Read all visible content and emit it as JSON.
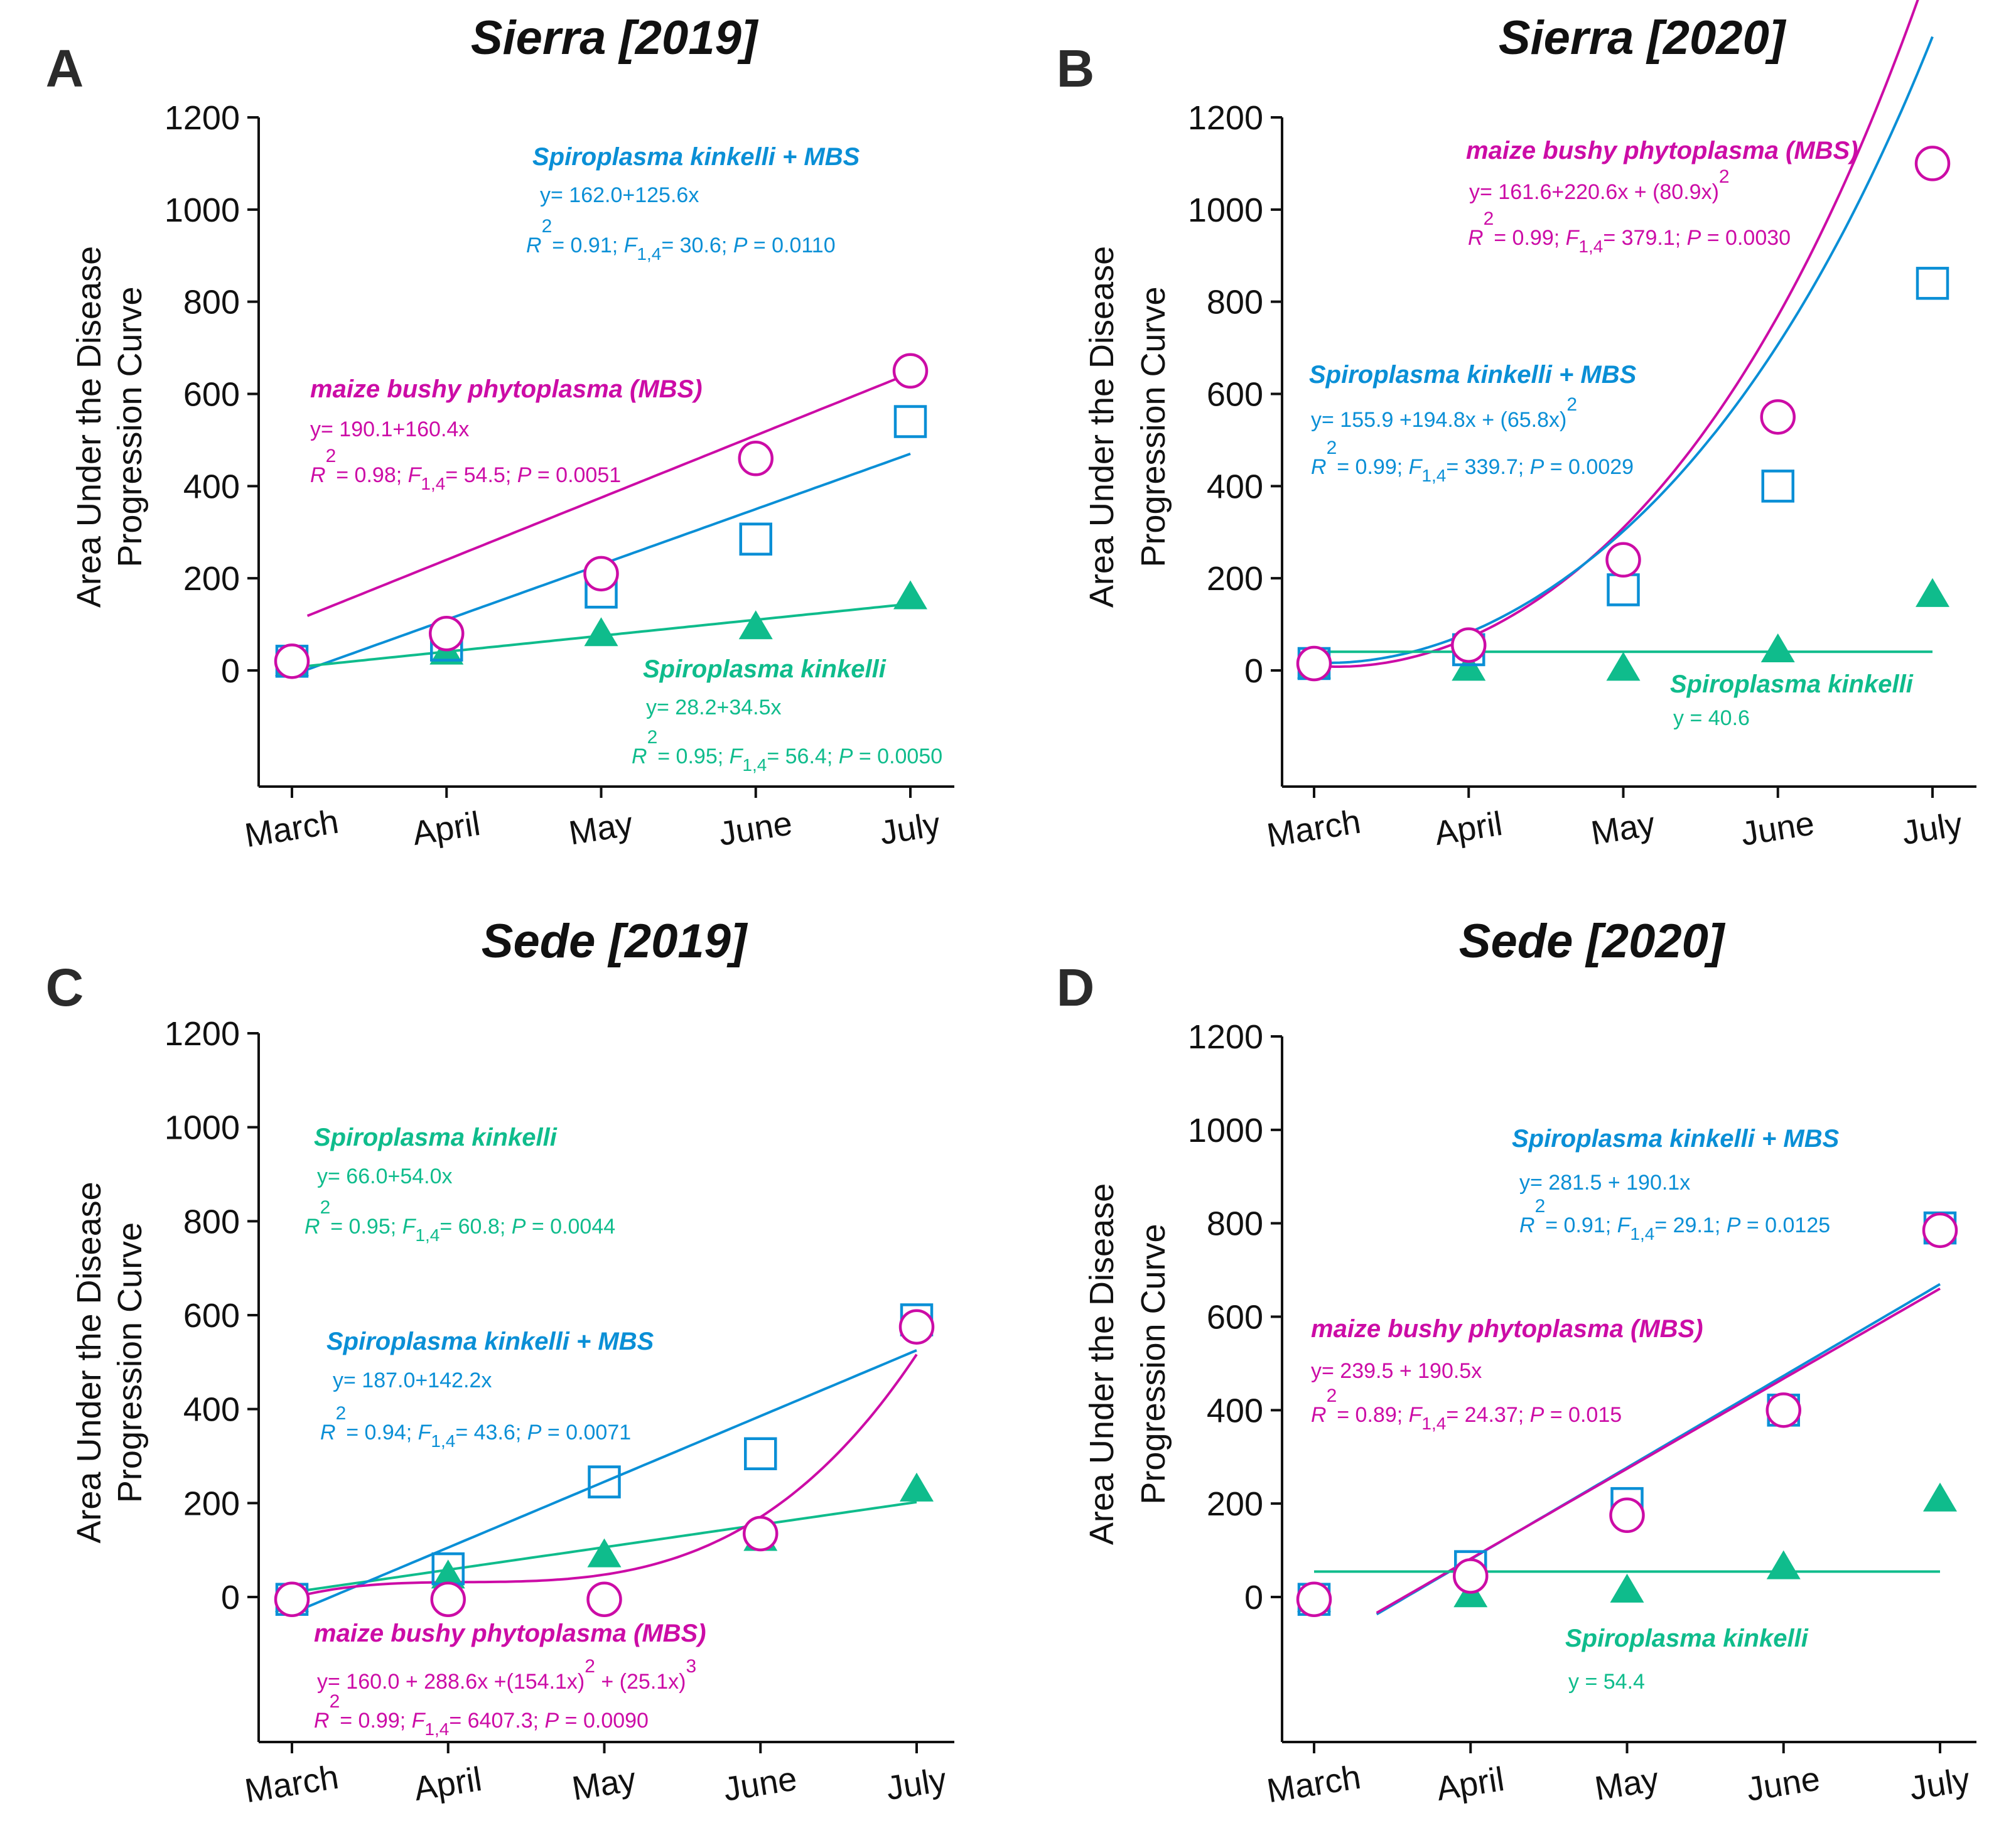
{
  "colors": {
    "mbs": "#cc0ca6",
    "sk_mbs": "#0a8fd6",
    "sk": "#0fbc8c",
    "axis": "#111111",
    "letter": "#2b2b2b"
  },
  "marker_semantics": {
    "mbs": "open-circle",
    "sk_mbs": "open-square",
    "sk": "filled-triangle"
  },
  "chart_data": [
    {
      "id": "A",
      "type": "scatter",
      "panel_letter": "A",
      "title": "Sierra [2019]",
      "ylabel_line1": "Area Under the Disease",
      "ylabel_line2": "Progression Curve",
      "categories": [
        "March",
        "April",
        "May",
        "June",
        "July"
      ],
      "yticks": [
        "0",
        "200",
        "400",
        "600",
        "800",
        "1000",
        "1200"
      ],
      "ylim": [
        -250,
        1200
      ],
      "series": [
        {
          "key": "mbs",
          "name": "maize bushy phytoplasma (MBS)",
          "points": [
            [
              1,
              20
            ],
            [
              2,
              80
            ],
            [
              3,
              210
            ],
            [
              4,
              460
            ],
            [
              5,
              650
            ]
          ],
          "fit": {
            "kind": "poly",
            "coef": [
              -30,
              135
            ],
            "from": 1.1,
            "to": 5.0
          },
          "eq": "y= 190.1+160.4x",
          "stats": {
            "R": "R",
            "r2": "2",
            "r2_value": "= 0.98; ",
            "F": "F",
            "df": "1,4",
            "F_value": "= 54.5; ",
            "P": "P",
            "P_value": " = 0.0051"
          }
        },
        {
          "key": "sk_mbs",
          "name": "Spiroplasma kinkelli + MBS",
          "points": [
            [
              1,
              20
            ],
            [
              2,
              55
            ],
            [
              3,
              170
            ],
            [
              4,
              285
            ],
            [
              5,
              540
            ]
          ],
          "fit": {
            "kind": "poly",
            "coef": [
              -130,
              120
            ],
            "from": 1.1,
            "to": 5.0
          },
          "eq": "y= 162.0+125.6x",
          "stats": {
            "R": "R",
            "r2": "2",
            "r2_value": "= 0.91; ",
            "F": "F",
            "df": "1,4",
            "F_value": "= 30.6; ",
            "P": "P",
            "P_value": " = 0.0110"
          }
        },
        {
          "key": "sk",
          "name": "Spiroplasma kinkelli",
          "points": [
            [
              1,
              15
            ],
            [
              2,
              40
            ],
            [
              3,
              80
            ],
            [
              4,
              95
            ],
            [
              5,
              160
            ]
          ],
          "fit": {
            "kind": "poly",
            "coef": [
              -28.5,
              34.6
            ],
            "from": 1.0,
            "to": 5.0
          },
          "eq": "y= 28.2+34.5x",
          "stats": {
            "R": "R",
            "r2": "2",
            "r2_value": "= 0.95; ",
            "F": "F",
            "df": "1,4",
            "F_value": "= 56.4; ",
            "P": "P",
            "P_value": " = 0.0050"
          }
        }
      ]
    },
    {
      "id": "B",
      "type": "scatter",
      "panel_letter": "B",
      "title": "Sierra [2020]",
      "ylabel_line1": "Area Under the Disease",
      "ylabel_line2": "Progression Curve",
      "categories": [
        "March",
        "April",
        "May",
        "June",
        "July"
      ],
      "yticks": [
        "0",
        "200",
        "400",
        "600",
        "800",
        "1000",
        "1200"
      ],
      "ylim": [
        -250,
        1200
      ],
      "series": [
        {
          "key": "mbs",
          "name": "maize bushy phytoplasma (MBS)",
          "points": [
            [
              1,
              15
            ],
            [
              2,
              55
            ],
            [
              3,
              240
            ],
            [
              4,
              550
            ],
            [
              5,
              1100
            ]
          ],
          "fit": {
            "kind": "poly",
            "coef": [
              137.2,
              -237.2,
              122.8,
              -14.8,
              2.2
            ],
            "from": 1.0,
            "to": 5.0
          },
          "eq": "y= 161.6+220.6x + (80.9x)",
          "eq_sup": "2",
          "stats": {
            "R": "R",
            "r2": "2",
            "r2_value": "= 0.99; ",
            "F": "F",
            "df": "1,4",
            "F_value": "= 379.1; ",
            "P": "P",
            "P_value": " = 0.0030"
          }
        },
        {
          "key": "sk_mbs",
          "name": "Spiroplasma kinkelli + MBS",
          "points": [
            [
              1,
              15
            ],
            [
              2,
              45
            ],
            [
              3,
              175
            ],
            [
              4,
              400
            ],
            [
              5,
              840
            ]
          ],
          "fit": {
            "kind": "poly",
            "coef": [
              125,
              -212.5,
              117.5,
              -15,
              2
            ],
            "from": 1.0,
            "to": 5.0
          },
          "eq": "y= 155.9 +194.8x + (65.8x)",
          "eq_sup": "2",
          "stats": {
            "R": "R",
            "r2": "2",
            "r2_value": "= 0.99; ",
            "F": "F",
            "df": "1,4",
            "F_value": "= 339.7; ",
            "P": "P",
            "P_value": " = 0.0029"
          }
        },
        {
          "key": "sk",
          "name": "Spiroplasma kinkelli",
          "points": [
            [
              1,
              10
            ],
            [
              2,
              5
            ],
            [
              3,
              5
            ],
            [
              4,
              45
            ],
            [
              5,
              165
            ]
          ],
          "fit": {
            "kind": "poly",
            "coef": [
              40.6
            ],
            "from": 1.0,
            "to": 5.0
          },
          "eq": "y = 40.6"
        }
      ]
    },
    {
      "id": "C",
      "type": "scatter",
      "panel_letter": "C",
      "title": "Sede [2019]",
      "ylabel_line1": "Area Under the Disease",
      "ylabel_line2": "Progression Curve",
      "categories": [
        "March",
        "April",
        "May",
        "June",
        "July"
      ],
      "yticks": [
        "0",
        "200",
        "400",
        "600",
        "800",
        "1000",
        "1200"
      ],
      "ylim": [
        -320,
        1200
      ],
      "series": [
        {
          "key": "sk",
          "name": "Spiroplasma kinkelli",
          "points": [
            [
              1,
              -5
            ],
            [
              2,
              45
            ],
            [
              3,
              90
            ],
            [
              4,
              125
            ],
            [
              5,
              230
            ]
          ],
          "fit": {
            "kind": "poly",
            "coef": [
              -38,
              48
            ],
            "from": 1.0,
            "to": 5.0
          },
          "eq": "y= 66.0+54.0x",
          "stats": {
            "R": "R",
            "r2": "2",
            "r2_value": "= 0.95; ",
            "F": "F",
            "df": "1,4",
            "F_value": "= 60.8; ",
            "P": "P",
            "P_value": " = 0.0044"
          }
        },
        {
          "key": "sk_mbs",
          "name": "Spiroplasma kinkelli + MBS",
          "points": [
            [
              1,
              -5
            ],
            [
              2,
              60
            ],
            [
              3,
              245
            ],
            [
              4,
              305
            ],
            [
              5,
              590
            ]
          ],
          "fit": {
            "kind": "poly",
            "coef": [
              -174.8,
              140
            ],
            "from": 1.05,
            "to": 5.0
          },
          "eq": "y= 187.0+142.2x",
          "stats": {
            "R": "R",
            "r2": "2",
            "r2_value": "= 0.94; ",
            "F": "F",
            "df": "1,4",
            "F_value": "= 43.6; ",
            "P": "P",
            "P_value": " = 0.0071"
          }
        },
        {
          "key": "mbs",
          "name": "maize bushy phytoplasma (MBS)",
          "points": [
            [
              1,
              -5
            ],
            [
              2,
              -5
            ],
            [
              3,
              -5
            ],
            [
              4,
              135
            ],
            [
              5,
              575
            ]
          ],
          "fit": {
            "kind": "poly",
            "coef": [
              -200,
              339.17,
              -174.58,
              35.83,
              -2.5,
              0.15
            ],
            "from": 1.0,
            "to": 5.0
          },
          "eq": "y= 160.0 + 288.6x +(154.1x)",
          "eq_sup": "2",
          "eq_mid": " + (25.1x)",
          "eq_sup2": "3",
          "stats": {
            "R": "R",
            "r2": "2",
            "r2_value": "= 0.99; ",
            "F": "F",
            "df": "1,4",
            "F_value": "= 6407.3; ",
            "P": "P",
            "P_value": " = 0.0090"
          }
        }
      ]
    },
    {
      "id": "D",
      "type": "scatter",
      "panel_letter": "D",
      "title": "Sede [2020]",
      "ylabel_line1": "Area Under the Disease",
      "ylabel_line2": "Progression Curve",
      "categories": [
        "March",
        "April",
        "May",
        "June",
        "July"
      ],
      "yticks": [
        "0",
        "200",
        "400",
        "600",
        "800",
        "1000",
        "1200"
      ],
      "ylim": [
        -320,
        1200
      ],
      "series": [
        {
          "key": "sk_mbs",
          "name": "Spiroplasma kinkelli + MBS",
          "points": [
            [
              1,
              -5
            ],
            [
              2,
              65
            ],
            [
              3,
              200
            ],
            [
              4,
              400
            ],
            [
              5,
              790
            ]
          ],
          "fit": {
            "kind": "poly",
            "coef": [
              -311.8,
              196.3
            ],
            "from": 1.4,
            "to": 5.0
          },
          "eq": "y= 281.5 + 190.1x",
          "stats": {
            "R": "R",
            "r2": "2",
            "r2_value": "= 0.91; ",
            "F": "F",
            "df": "1,4",
            "F_value": "= 29.1; ",
            "P": "P",
            "P_value": " = 0.0125"
          }
        },
        {
          "key": "mbs",
          "name": "maize bushy phytoplasma (MBS)",
          "points": [
            [
              1,
              -5
            ],
            [
              2,
              45
            ],
            [
              3,
              175
            ],
            [
              4,
              400
            ],
            [
              5,
              785
            ]
          ],
          "fit": {
            "kind": "poly",
            "coef": [
              -303.8,
              192.8
            ],
            "from": 1.4,
            "to": 5.0
          },
          "eq": "y= 239.5 + 190.5x",
          "stats": {
            "R": "R",
            "r2": "2",
            "r2_value": "= 0.89; ",
            "F": "F",
            "df": "1,4",
            "F_value": "= 24.37; ",
            "P": "P",
            "P_value": " = 0.015"
          }
        },
        {
          "key": "sk",
          "name": "Spiroplasma kinkelli",
          "points": [
            [
              1,
              -5
            ],
            [
              2,
              5
            ],
            [
              3,
              15
            ],
            [
              4,
              65
            ],
            [
              5,
              210
            ]
          ],
          "fit": {
            "kind": "poly",
            "coef": [
              54.4
            ],
            "from": 1.0,
            "to": 5.0
          },
          "eq": "y = 54.4"
        }
      ]
    }
  ]
}
